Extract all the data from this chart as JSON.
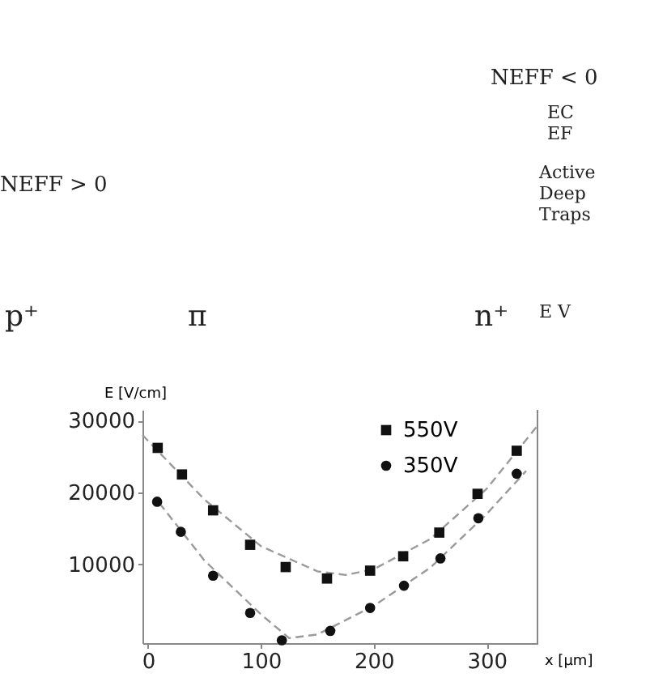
{
  "chart_data": {
    "type": "scatter",
    "xlabel": "x [µm]",
    "ylabel": "E [V/cm]",
    "xlim": [
      -5,
      345
    ],
    "ylim": [
      -1000,
      31500
    ],
    "xticks": [
      0,
      100,
      200,
      300
    ],
    "yticks": [
      10000,
      20000,
      30000
    ],
    "grid": false,
    "legend": "top right",
    "annotations": [
      "NEFF < 0",
      "EC",
      "EF",
      "Active",
      "Deep",
      "Traps",
      "NEFF > 0",
      "E V",
      "p⁺",
      "π",
      "n⁺"
    ],
    "series": [
      {
        "name": "550V",
        "type": "scatter",
        "marker": "square",
        "color": "#111111",
        "x": [
          8.5,
          30,
          57.6,
          90.4,
          121.9,
          158.5,
          196.7,
          226,
          258,
          291.9,
          326.6
        ],
        "values": [
          26200,
          22500,
          17500,
          12700,
          9600,
          8000,
          9100,
          11100,
          14400,
          19800,
          25800
        ]
      },
      {
        "name": "350V",
        "type": "scatter",
        "marker": "circle",
        "color": "#111111",
        "x": [
          8,
          29,
          57.6,
          90.4,
          118.5,
          161.4,
          196.7,
          226.7,
          259,
          292.6,
          326.6
        ],
        "values": [
          18700,
          14500,
          8400,
          3200,
          -600,
          700,
          3900,
          7000,
          10800,
          16400,
          22600
        ]
      },
      {
        "type": "line",
        "line_style": "dashed",
        "color": "#9a9a9a",
        "x": [
          -5,
          50,
          100,
          150,
          175,
          200,
          250,
          300,
          345
        ],
        "values": [
          28000,
          19000,
          12500,
          9000,
          8500,
          9300,
          13500,
          20500,
          29300
        ]
      },
      {
        "type": "line",
        "line_style": "dashed",
        "color": "#9a9a9a",
        "x": [
          10,
          50,
          100,
          125,
          150,
          200,
          250,
          300,
          335
        ],
        "values": [
          18500,
          10500,
          3000,
          -300,
          200,
          4200,
          9500,
          17000,
          23000
        ]
      }
    ]
  }
}
